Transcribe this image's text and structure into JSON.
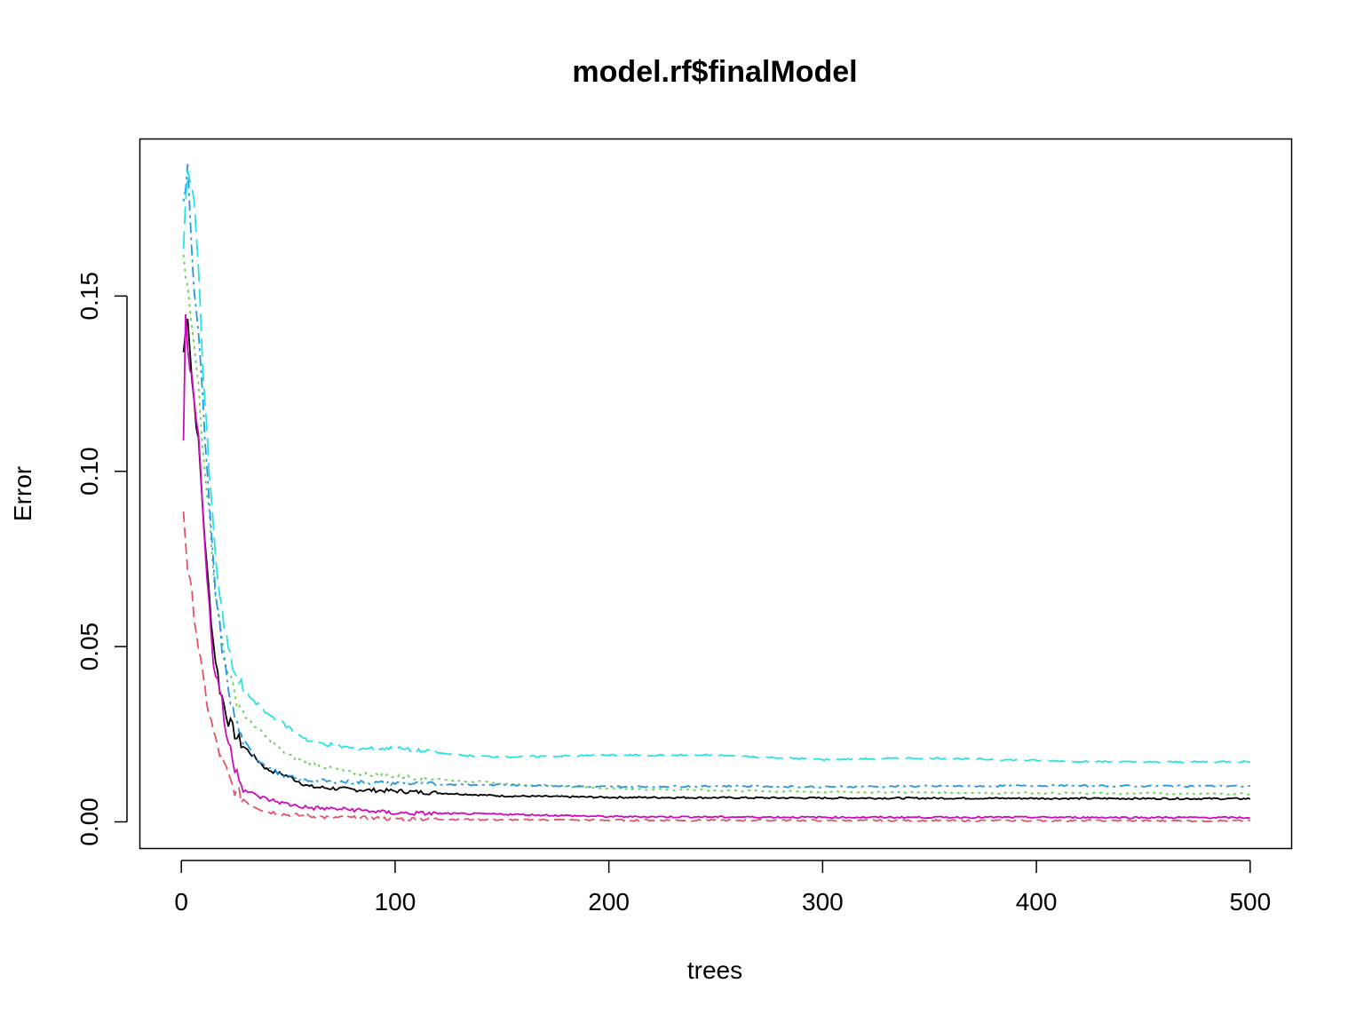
{
  "chart_data": {
    "type": "line",
    "title": "model.rf$finalModel",
    "xlabel": "trees",
    "ylabel": "Error",
    "xlim": [
      -19.4,
      519.4
    ],
    "ylim": [
      -0.0076,
      0.1948
    ],
    "x_ticks": [
      0,
      100,
      200,
      300,
      400,
      500
    ],
    "x_tick_labels": [
      "0",
      "100",
      "200",
      "300",
      "400",
      "500"
    ],
    "y_ticks": [
      0.0,
      0.05,
      0.1,
      0.15
    ],
    "y_tick_labels": [
      "0.00",
      "0.05",
      "0.10",
      "0.15"
    ],
    "grid": false,
    "legend": "none",
    "series": [
      {
        "color": "#000000",
        "dash": "solid",
        "x": [
          1,
          3,
          5,
          8,
          10,
          12,
          15,
          18,
          22,
          26,
          30,
          35,
          40,
          50,
          60,
          80,
          100,
          150,
          200,
          300,
          400,
          500
        ],
        "y": [
          0.134,
          0.145,
          0.126,
          0.108,
          0.09,
          0.072,
          0.051,
          0.038,
          0.029,
          0.024,
          0.021,
          0.018,
          0.015,
          0.013,
          0.01,
          0.0092,
          0.0088,
          0.0074,
          0.007,
          0.0068,
          0.0067,
          0.0066
        ]
      },
      {
        "color": "#DF536B",
        "dash": "dashed",
        "x": [
          1,
          3,
          5,
          8,
          10,
          13,
          16,
          20,
          24,
          28,
          32,
          40,
          50,
          70,
          100,
          150,
          200,
          300,
          500
        ],
        "y": [
          0.089,
          0.072,
          0.064,
          0.05,
          0.041,
          0.031,
          0.023,
          0.016,
          0.01,
          0.007,
          0.005,
          0.003,
          0.002,
          0.0012,
          0.0009,
          0.0006,
          0.0005,
          0.0004,
          0.0003
        ]
      },
      {
        "color": "#61D04F",
        "dash": "dotted",
        "x": [
          1,
          3,
          5,
          8,
          10,
          13,
          16,
          20,
          25,
          30,
          40,
          50,
          65,
          80,
          100,
          150,
          200,
          300,
          400,
          500
        ],
        "y": [
          0.16,
          0.152,
          0.14,
          0.125,
          0.108,
          0.088,
          0.065,
          0.048,
          0.036,
          0.03,
          0.024,
          0.019,
          0.016,
          0.014,
          0.013,
          0.011,
          0.0095,
          0.0085,
          0.0082,
          0.008
        ]
      },
      {
        "color": "#2297E6",
        "dash": "dotdash",
        "x": [
          1,
          3,
          5,
          8,
          10,
          13,
          16,
          20,
          24,
          28,
          35,
          45,
          55,
          70,
          100,
          150,
          200,
          250,
          300,
          400,
          500
        ],
        "y": [
          0.175,
          0.188,
          0.16,
          0.14,
          0.12,
          0.09,
          0.065,
          0.045,
          0.032,
          0.024,
          0.018,
          0.014,
          0.012,
          0.0115,
          0.011,
          0.0105,
          0.01,
          0.0102,
          0.01,
          0.0103,
          0.0102
        ]
      },
      {
        "color": "#28E2E5",
        "dash": "longdash",
        "x": [
          1,
          3,
          5,
          8,
          10,
          13,
          16,
          20,
          25,
          30,
          40,
          50,
          60,
          80,
          100,
          130,
          150,
          200,
          250,
          300,
          350,
          400,
          450,
          500
        ],
        "y": [
          0.165,
          0.185,
          0.183,
          0.16,
          0.13,
          0.1,
          0.075,
          0.055,
          0.042,
          0.037,
          0.031,
          0.027,
          0.023,
          0.021,
          0.021,
          0.019,
          0.0185,
          0.019,
          0.019,
          0.0178,
          0.0182,
          0.0175,
          0.017,
          0.0172
        ]
      },
      {
        "color": "#CD0BBC",
        "dash": "solid",
        "x": [
          1,
          2,
          3,
          5,
          8,
          10,
          12,
          15,
          18,
          21,
          25,
          30,
          35,
          40,
          50,
          60,
          80,
          100,
          150,
          200,
          300,
          400,
          500
        ],
        "y": [
          0.108,
          0.144,
          0.133,
          0.128,
          0.11,
          0.09,
          0.07,
          0.045,
          0.038,
          0.025,
          0.016,
          0.009,
          0.0075,
          0.0065,
          0.005,
          0.004,
          0.0035,
          0.0025,
          0.0022,
          0.0015,
          0.0013,
          0.0013,
          0.0012
        ]
      }
    ]
  }
}
